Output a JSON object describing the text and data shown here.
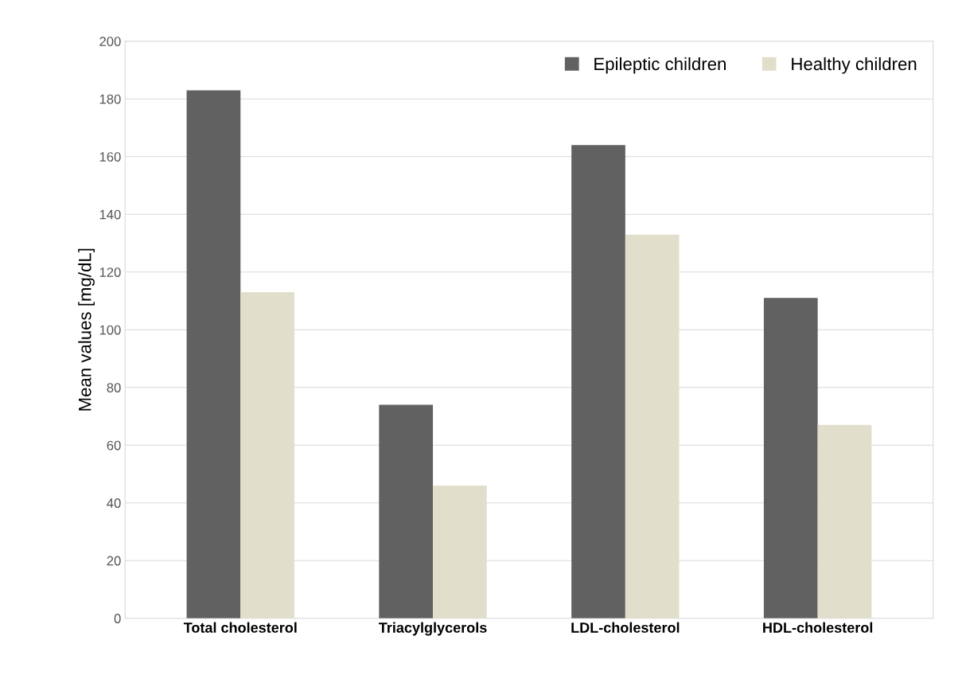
{
  "chart_data": {
    "type": "bar",
    "ylabel": "Mean values [mg/dL]",
    "categories": [
      "Total cholesterol",
      "Triacylglycerols",
      "LDL-cholesterol",
      "HDL-cholesterol"
    ],
    "series": [
      {
        "name": "Epileptic children",
        "color": "#616161",
        "values": [
          183,
          74,
          164,
          111
        ]
      },
      {
        "name": "Healthy children",
        "color": "#e1dfcb",
        "values": [
          113,
          46,
          133,
          67
        ]
      }
    ],
    "ylim": [
      0,
      200
    ],
    "yticks": [
      0,
      20,
      40,
      60,
      80,
      100,
      120,
      140,
      160,
      180,
      200
    ],
    "grid": "y",
    "legend": "top right"
  }
}
